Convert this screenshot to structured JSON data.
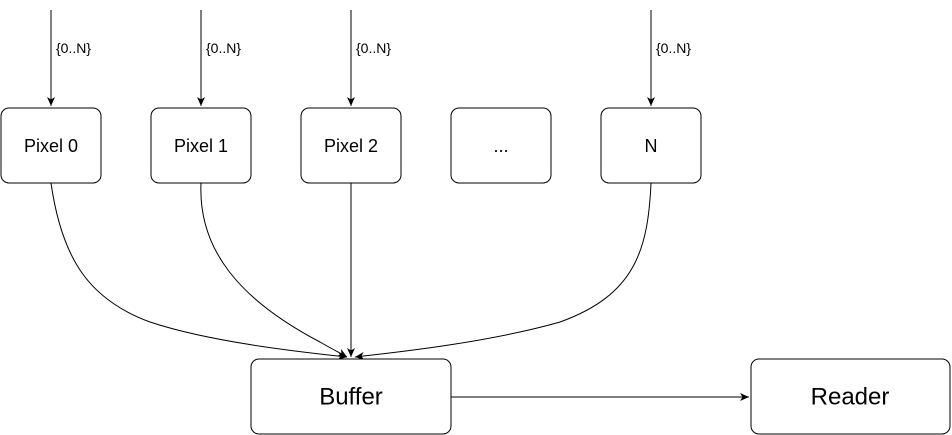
{
  "diagram": {
    "nodes": {
      "pixel0": "Pixel 0",
      "pixel1": "Pixel 1",
      "pixel2": "Pixel 2",
      "ellipsis": "...",
      "pixel_n": "N",
      "buffer": "Buffer",
      "reader": "Reader"
    },
    "input_labels": {
      "pixel0": "{0..N}",
      "pixel1": "{0..N}",
      "pixel2": "{0..N}",
      "pixel_n": "{0..N}"
    }
  }
}
